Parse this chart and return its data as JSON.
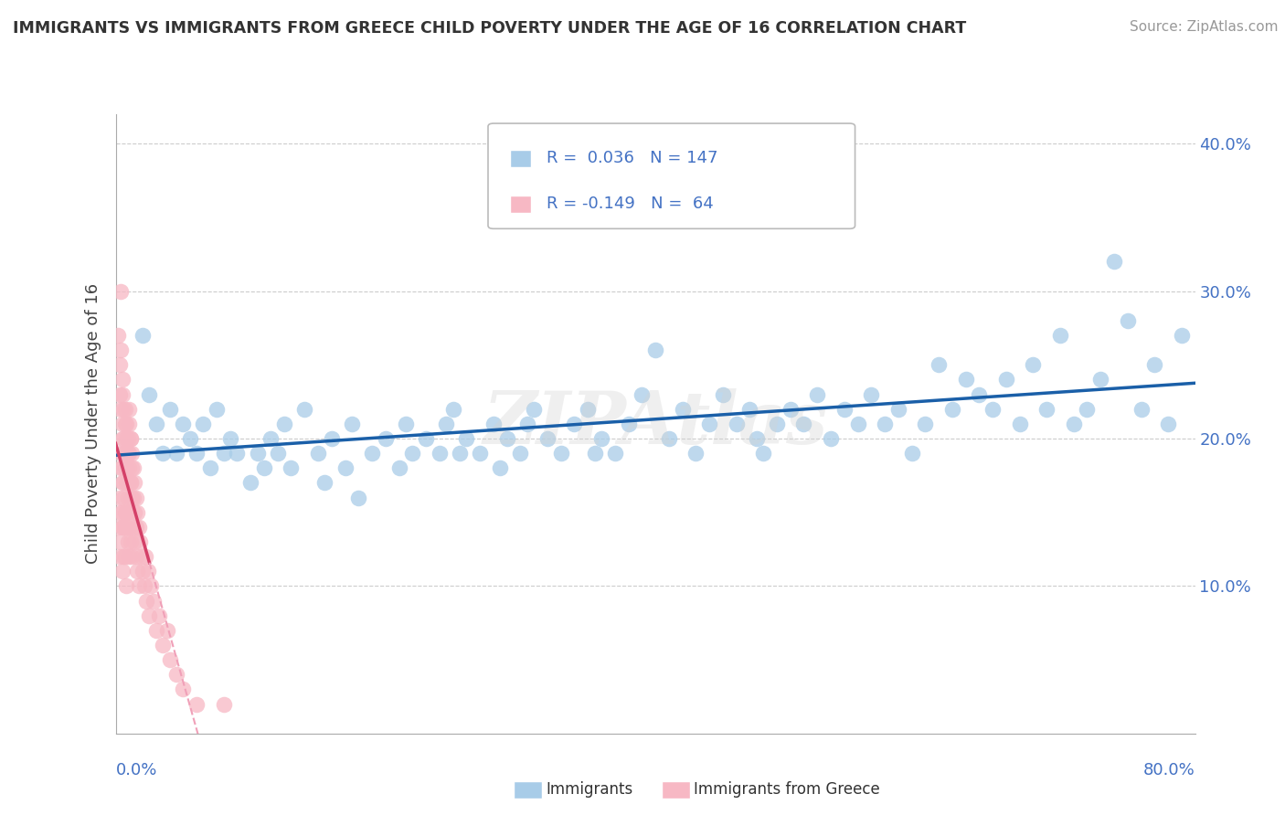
{
  "title": "IMMIGRANTS VS IMMIGRANTS FROM GREECE CHILD POVERTY UNDER THE AGE OF 16 CORRELATION CHART",
  "source": "Source: ZipAtlas.com",
  "ylabel": "Child Poverty Under the Age of 16",
  "xlim": [
    0,
    0.8
  ],
  "ylim": [
    0,
    0.42
  ],
  "blue_color": "#a8cce8",
  "pink_color": "#f7b8c4",
  "blue_line_color": "#1a5fa8",
  "pink_line_color": "#d44068",
  "pink_dash_color": "#f0a0b8",
  "watermark": "ZIPAtlas",
  "background_color": "#ffffff",
  "grid_color": "#cccccc",
  "blue_scatter_x": [
    0.02,
    0.025,
    0.03,
    0.035,
    0.04,
    0.045,
    0.05,
    0.055,
    0.06,
    0.065,
    0.07,
    0.075,
    0.08,
    0.085,
    0.09,
    0.1,
    0.105,
    0.11,
    0.115,
    0.12,
    0.125,
    0.13,
    0.14,
    0.15,
    0.155,
    0.16,
    0.17,
    0.175,
    0.18,
    0.19,
    0.2,
    0.21,
    0.215,
    0.22,
    0.23,
    0.24,
    0.245,
    0.25,
    0.255,
    0.26,
    0.27,
    0.28,
    0.285,
    0.29,
    0.3,
    0.305,
    0.31,
    0.32,
    0.33,
    0.34,
    0.35,
    0.355,
    0.36,
    0.37,
    0.38,
    0.39,
    0.4,
    0.41,
    0.42,
    0.43,
    0.44,
    0.45,
    0.46,
    0.47,
    0.475,
    0.48,
    0.49,
    0.5,
    0.51,
    0.52,
    0.53,
    0.54,
    0.55,
    0.56,
    0.57,
    0.58,
    0.59,
    0.6,
    0.61,
    0.62,
    0.63,
    0.64,
    0.65,
    0.66,
    0.67,
    0.68,
    0.69,
    0.7,
    0.71,
    0.72,
    0.73,
    0.74,
    0.75,
    0.76,
    0.77,
    0.78,
    0.79
  ],
  "blue_scatter_y": [
    0.27,
    0.23,
    0.21,
    0.19,
    0.22,
    0.19,
    0.21,
    0.2,
    0.19,
    0.21,
    0.18,
    0.22,
    0.19,
    0.2,
    0.19,
    0.17,
    0.19,
    0.18,
    0.2,
    0.19,
    0.21,
    0.18,
    0.22,
    0.19,
    0.17,
    0.2,
    0.18,
    0.21,
    0.16,
    0.19,
    0.2,
    0.18,
    0.21,
    0.19,
    0.2,
    0.19,
    0.21,
    0.22,
    0.19,
    0.2,
    0.19,
    0.21,
    0.18,
    0.2,
    0.19,
    0.21,
    0.22,
    0.2,
    0.19,
    0.21,
    0.22,
    0.19,
    0.2,
    0.19,
    0.21,
    0.23,
    0.26,
    0.2,
    0.22,
    0.19,
    0.21,
    0.23,
    0.21,
    0.22,
    0.2,
    0.19,
    0.21,
    0.22,
    0.21,
    0.23,
    0.2,
    0.22,
    0.21,
    0.23,
    0.21,
    0.22,
    0.19,
    0.21,
    0.25,
    0.22,
    0.24,
    0.23,
    0.22,
    0.24,
    0.21,
    0.25,
    0.22,
    0.27,
    0.21,
    0.22,
    0.24,
    0.32,
    0.28,
    0.22,
    0.25,
    0.21,
    0.27
  ],
  "pink_scatter_x": [
    0.002,
    0.003,
    0.003,
    0.004,
    0.004,
    0.004,
    0.005,
    0.005,
    0.005,
    0.005,
    0.006,
    0.006,
    0.006,
    0.006,
    0.007,
    0.007,
    0.007,
    0.007,
    0.008,
    0.008,
    0.008,
    0.008,
    0.009,
    0.009,
    0.009,
    0.01,
    0.01,
    0.01,
    0.01,
    0.011,
    0.011,
    0.011,
    0.012,
    0.012,
    0.012,
    0.013,
    0.013,
    0.014,
    0.014,
    0.015,
    0.015,
    0.016,
    0.016,
    0.017,
    0.017,
    0.018,
    0.019,
    0.02,
    0.021,
    0.022,
    0.023,
    0.024,
    0.025,
    0.026,
    0.028,
    0.03,
    0.032,
    0.035,
    0.038,
    0.04,
    0.045,
    0.05,
    0.06,
    0.08
  ],
  "pink_scatter_y": [
    0.14,
    0.16,
    0.12,
    0.18,
    0.15,
    0.13,
    0.2,
    0.17,
    0.14,
    0.11,
    0.22,
    0.19,
    0.16,
    0.12,
    0.21,
    0.18,
    0.15,
    0.12,
    0.2,
    0.17,
    0.14,
    0.1,
    0.19,
    0.16,
    0.13,
    0.21,
    0.18,
    0.15,
    0.12,
    0.2,
    0.17,
    0.13,
    0.19,
    0.16,
    0.12,
    0.18,
    0.14,
    0.17,
    0.13,
    0.16,
    0.12,
    0.15,
    0.11,
    0.14,
    0.1,
    0.13,
    0.12,
    0.11,
    0.1,
    0.12,
    0.09,
    0.11,
    0.08,
    0.1,
    0.09,
    0.07,
    0.08,
    0.06,
    0.07,
    0.05,
    0.04,
    0.03,
    0.02,
    0.02
  ],
  "pink_extra_x": [
    0.002,
    0.003,
    0.003,
    0.004,
    0.004,
    0.004,
    0.004,
    0.005,
    0.005,
    0.005,
    0.005,
    0.005,
    0.006,
    0.006,
    0.006,
    0.007,
    0.007,
    0.008,
    0.008,
    0.008,
    0.009,
    0.009,
    0.009,
    0.01,
    0.01,
    0.011,
    0.011,
    0.012,
    0.013,
    0.014,
    0.015
  ],
  "pink_extra_y": [
    0.27,
    0.25,
    0.23,
    0.3,
    0.26,
    0.22,
    0.19,
    0.24,
    0.21,
    0.18,
    0.15,
    0.23,
    0.2,
    0.17,
    0.14,
    0.22,
    0.19,
    0.21,
    0.18,
    0.15,
    0.2,
    0.17,
    0.14,
    0.22,
    0.19,
    0.2,
    0.17,
    0.18,
    0.16,
    0.15,
    0.14
  ]
}
